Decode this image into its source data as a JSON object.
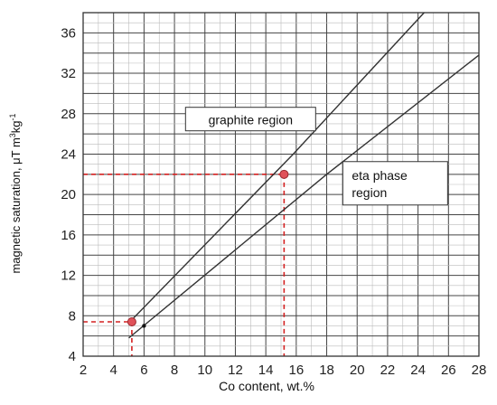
{
  "chart_data": {
    "type": "line",
    "xlabel": "Co content, wt.%",
    "ylabel": "magnetic saturation, μT m",
    "ylabel_sup1": "3",
    "ylabel_mid": "kg",
    "ylabel_sup2": "-1",
    "x_ticks": [
      "2",
      "4",
      "6",
      "8",
      "10",
      "12",
      "14",
      "16",
      "18",
      "20",
      "22",
      "24",
      "26",
      "28"
    ],
    "y_ticks": [
      "4",
      "8",
      "12",
      "16",
      "20",
      "24",
      "28",
      "32",
      "36"
    ],
    "xlim": [
      2,
      28
    ],
    "ylim": [
      4,
      38
    ],
    "grid": true,
    "series": [
      {
        "x": [
          5.2,
          15.8,
          24.4
        ],
        "y": [
          7.6,
          24.0,
          38.0
        ]
      },
      {
        "x": [
          5.0,
          18.0,
          28.0
        ],
        "y": [
          5.8,
          22.0,
          33.8
        ]
      }
    ],
    "points": [
      {
        "x": 5.2,
        "y": 7.4,
        "color": "#e0525a"
      },
      {
        "x": 15.2,
        "y": 22.0,
        "color": "#e0525a"
      }
    ],
    "small_markers": [
      {
        "x": 6.0,
        "y": 7.0
      }
    ],
    "dashed_color": "#d42020",
    "annotations": [
      {
        "text": "graphite region",
        "x": 13.0,
        "y": 27.2
      },
      {
        "text": "eta phase region",
        "line1": "eta phase",
        "line2": "region",
        "x": 22.5,
        "y": 21.2
      }
    ]
  }
}
